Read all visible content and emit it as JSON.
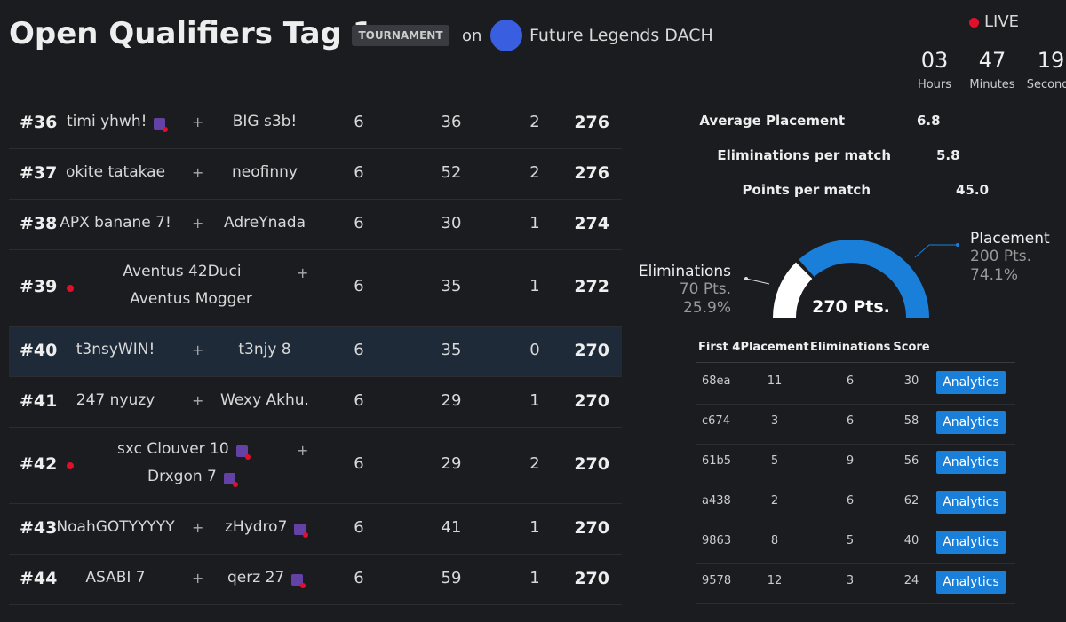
{
  "header": {
    "title": "Open Qualifiers Tag 1",
    "badge": "TOURNAMENT",
    "on": "on",
    "organizer": "Future Legends DACH",
    "live": "LIVE",
    "countdown": [
      {
        "value": "03",
        "label": "Hours"
      },
      {
        "value": "47",
        "label": "Minutes"
      },
      {
        "value": "19",
        "label": "Seconds"
      }
    ]
  },
  "leaderboard": {
    "separator": "+",
    "rows": [
      {
        "rank": "#36",
        "players": [
          "timi yhwh!",
          "BIG s3b!"
        ],
        "twitch": [
          true,
          false
        ],
        "live": false,
        "highlight": false,
        "matches": "6",
        "eliminations": "36",
        "wins": "2",
        "points": "276"
      },
      {
        "rank": "#37",
        "players": [
          "okite tatakae",
          "neofinny"
        ],
        "twitch": [
          false,
          false
        ],
        "live": false,
        "highlight": false,
        "matches": "6",
        "eliminations": "52",
        "wins": "2",
        "points": "276"
      },
      {
        "rank": "#38",
        "players": [
          "APX banane 7!",
          "AdreYnada"
        ],
        "twitch": [
          false,
          false
        ],
        "live": false,
        "highlight": false,
        "matches": "6",
        "eliminations": "30",
        "wins": "1",
        "points": "274"
      },
      {
        "rank": "#39",
        "players": [
          "Aventus 42Duci",
          "Aventus Mogger"
        ],
        "twitch": [
          false,
          false
        ],
        "live": true,
        "highlight": false,
        "matches": "6",
        "eliminations": "35",
        "wins": "1",
        "points": "272"
      },
      {
        "rank": "#40",
        "players": [
          "t3nsyWIN!",
          "t3njy 8"
        ],
        "twitch": [
          false,
          false
        ],
        "live": false,
        "highlight": true,
        "matches": "6",
        "eliminations": "35",
        "wins": "0",
        "points": "270"
      },
      {
        "rank": "#41",
        "players": [
          "247 nyuzy",
          "Wexy Akhu."
        ],
        "twitch": [
          false,
          false
        ],
        "live": false,
        "highlight": false,
        "matches": "6",
        "eliminations": "29",
        "wins": "1",
        "points": "270"
      },
      {
        "rank": "#42",
        "players": [
          "sxc Clouver 10",
          "Drxgon 7"
        ],
        "twitch": [
          true,
          true
        ],
        "live": true,
        "highlight": false,
        "matches": "6",
        "eliminations": "29",
        "wins": "2",
        "points": "270"
      },
      {
        "rank": "#43",
        "players": [
          "NoahGOTYYYYY",
          "zHydro7"
        ],
        "twitch": [
          false,
          true
        ],
        "live": false,
        "highlight": false,
        "matches": "6",
        "eliminations": "41",
        "wins": "1",
        "points": "270"
      },
      {
        "rank": "#44",
        "players": [
          "ASABI 7",
          "qerz 27"
        ],
        "twitch": [
          false,
          true
        ],
        "live": false,
        "highlight": false,
        "matches": "6",
        "eliminations": "59",
        "wins": "1",
        "points": "270"
      }
    ]
  },
  "stats": [
    {
      "label": "Average Placement",
      "value": "6.8"
    },
    {
      "label": "Eliminations per match",
      "value": "5.8"
    },
    {
      "label": "Points per match",
      "value": "45.0"
    }
  ],
  "gauge": {
    "total": "270 Pts.",
    "eliminations": {
      "label": "Eliminations",
      "points": "70 Pts.",
      "share": {
        "value": 25.9,
        "label": "25.9%"
      },
      "color": "#ffffff"
    },
    "placement": {
      "label": "Placement",
      "points": "200 Pts.",
      "share": {
        "value": 74.1,
        "label": "74.1%"
      },
      "color": "#1a7fd9"
    }
  },
  "matches": {
    "headers": [
      "First 4",
      "Placement",
      "Eliminations",
      "Score"
    ],
    "button": "Analytics",
    "rows": [
      [
        "68ea",
        "11",
        "6",
        "30"
      ],
      [
        "c674",
        "3",
        "6",
        "58"
      ],
      [
        "61b5",
        "5",
        "9",
        "56"
      ],
      [
        "a438",
        "2",
        "6",
        "62"
      ],
      [
        "9863",
        "8",
        "5",
        "40"
      ],
      [
        "9578",
        "12",
        "3",
        "24"
      ]
    ]
  }
}
